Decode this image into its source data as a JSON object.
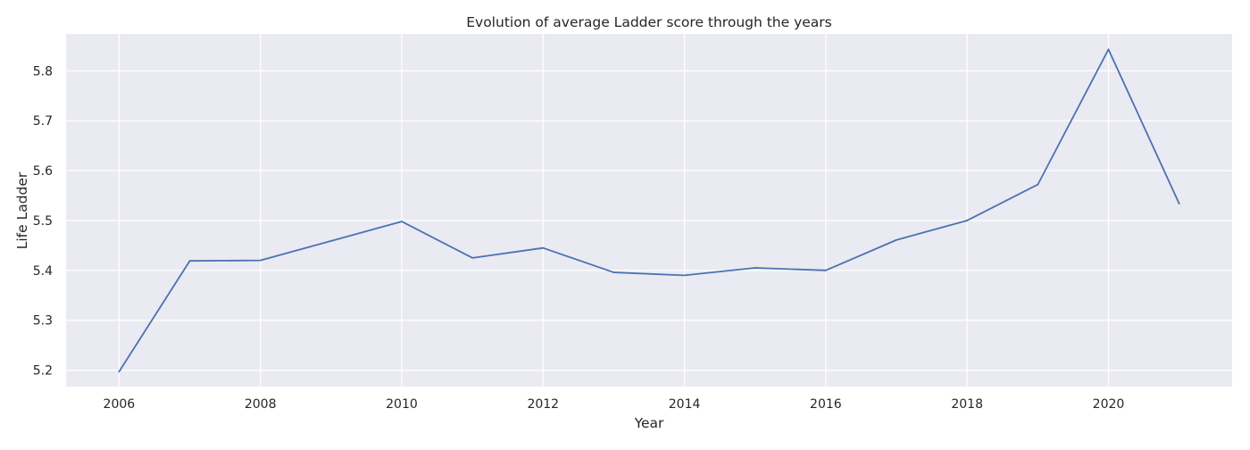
{
  "chart_data": {
    "type": "line",
    "title": "Evolution of average Ladder score through the years",
    "xlabel": "Year",
    "ylabel": "Life Ladder",
    "xlim": [
      2005.25,
      2021.75
    ],
    "ylim": [
      5.167,
      5.874
    ],
    "x_ticks": [
      "2006",
      "2008",
      "2010",
      "2012",
      "2014",
      "2016",
      "2018",
      "2020"
    ],
    "y_ticks": [
      "5.2",
      "5.3",
      "5.4",
      "5.5",
      "5.6",
      "5.7",
      "5.8"
    ],
    "grid": true,
    "series": [
      {
        "name": "Life Ladder",
        "color": "#4c72b0",
        "x": [
          2006,
          2007,
          2008,
          2009,
          2010,
          2011,
          2012,
          2013,
          2014,
          2015,
          2016,
          2017,
          2018,
          2019,
          2020,
          2021
        ],
        "y": [
          5.197,
          5.419,
          5.42,
          5.459,
          5.498,
          5.425,
          5.445,
          5.396,
          5.39,
          5.405,
          5.4,
          5.461,
          5.5,
          5.572,
          5.843,
          5.534
        ]
      }
    ]
  },
  "colors": {
    "plot_background": "#eaeaf2",
    "grid": "#ffffff",
    "text": "#262626"
  }
}
